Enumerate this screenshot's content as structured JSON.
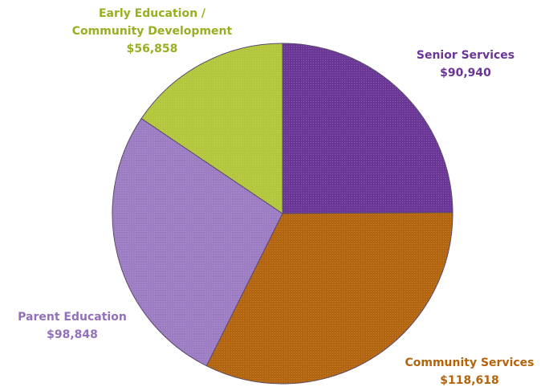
{
  "chart_data": {
    "type": "pie",
    "categories": [
      "Senior Services",
      "Community Services",
      "Parent Education",
      "Early Education / Community Development"
    ],
    "values": [
      90940,
      118618,
      98848,
      56858
    ],
    "value_labels": [
      "$90,940",
      "$118,618",
      "$98,848",
      "$56,858"
    ],
    "colors": [
      "#6b3797",
      "#b4650f",
      "#9c7cc3",
      "#b3c63c"
    ],
    "label_colors": [
      "#6a3596",
      "#b3640c",
      "#9370bb",
      "#9aae1f"
    ]
  }
}
